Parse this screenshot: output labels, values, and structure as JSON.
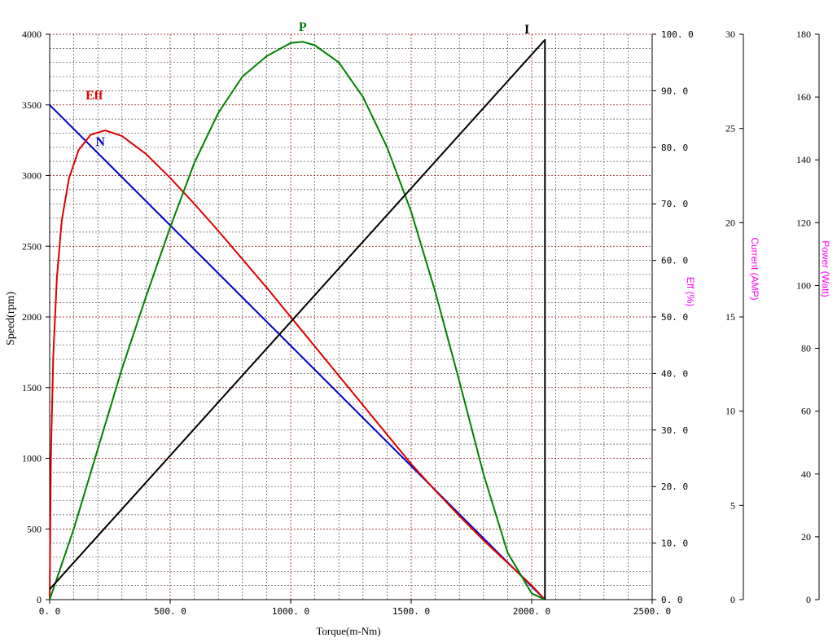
{
  "chart_data": {
    "type": "line",
    "xlabel": "Torque(m-Nm)",
    "xlim": [
      0,
      2500
    ],
    "x_ticks": [
      "0. 0",
      "500. 0",
      "1000. 0",
      "1500. 0",
      "2000. 0",
      "2500. 0"
    ],
    "grid": true,
    "axes": {
      "speed": {
        "label": "Speed(rpm)",
        "range": [
          0,
          4000
        ],
        "ticks": [
          "0",
          "500",
          "1000",
          "1500",
          "2000",
          "2500",
          "3000",
          "3500",
          "4000"
        ],
        "color": "#000000"
      },
      "eff": {
        "label": "Eff (%)",
        "range": [
          0,
          100
        ],
        "ticks": [
          "0. 0",
          "10. 0",
          "20. 0",
          "30. 0",
          "40. 0",
          "50. 0",
          "60. 0",
          "70. 0",
          "80. 0",
          "90. 0",
          "100. 0"
        ],
        "color": "#ff00ff"
      },
      "current": {
        "label": "Current (AMP)",
        "range": [
          0,
          30
        ],
        "ticks": [
          "0",
          "5",
          "10",
          "15",
          "20",
          "25",
          "30"
        ],
        "color": "#ff00ff"
      },
      "power": {
        "label": "Power (Watt)",
        "range": [
          0,
          180
        ],
        "ticks": [
          "0",
          "20",
          "40",
          "60",
          "80",
          "100",
          "120",
          "140",
          "160",
          "180"
        ],
        "color": "#ff00ff"
      }
    },
    "series": [
      {
        "name": "N",
        "axis": "speed",
        "color": "#0000cc",
        "label_at": [
          210,
          3210
        ],
        "x": [
          0,
          2055
        ],
        "y": [
          3500,
          0
        ]
      },
      {
        "name": "Eff",
        "axis": "eff",
        "color": "#dd0000",
        "label_at": [
          185,
          88.5
        ],
        "x": [
          0,
          5,
          15,
          30,
          50,
          80,
          120,
          170,
          230,
          300,
          400,
          500,
          600,
          700,
          800,
          900,
          1000,
          1100,
          1200,
          1300,
          1400,
          1500,
          1600,
          1700,
          1800,
          1900,
          2000,
          2055
        ],
        "y": [
          0,
          25,
          43,
          57,
          67,
          74.5,
          79.5,
          82.2,
          83,
          82,
          78.8,
          74.6,
          70,
          65.2,
          60.2,
          55.2,
          50,
          44.8,
          39.6,
          34.4,
          29.2,
          24,
          19.3,
          14.8,
          10.5,
          6.5,
          2.5,
          0
        ]
      },
      {
        "name": "P",
        "axis": "power",
        "color": "#008000",
        "label_at": [
          1050,
          181
        ],
        "x": [
          0,
          100,
          200,
          300,
          400,
          500,
          600,
          700,
          800,
          900,
          1000,
          1050,
          1100,
          1200,
          1300,
          1400,
          1500,
          1600,
          1700,
          1800,
          1900,
          2000,
          2055
        ],
        "y": [
          0,
          22.5,
          48,
          73.5,
          96.5,
          118.5,
          139,
          155,
          166.5,
          173,
          177.2,
          177.6,
          176.5,
          171,
          160,
          144,
          123.5,
          98,
          69.5,
          40,
          15,
          2,
          0
        ]
      },
      {
        "name": "I",
        "axis": "current",
        "color": "#000000",
        "label_at": [
          1980,
          30.05
        ],
        "x": [
          0,
          2055,
          2055
        ],
        "y": [
          0.55,
          29.7,
          0
        ]
      }
    ]
  }
}
